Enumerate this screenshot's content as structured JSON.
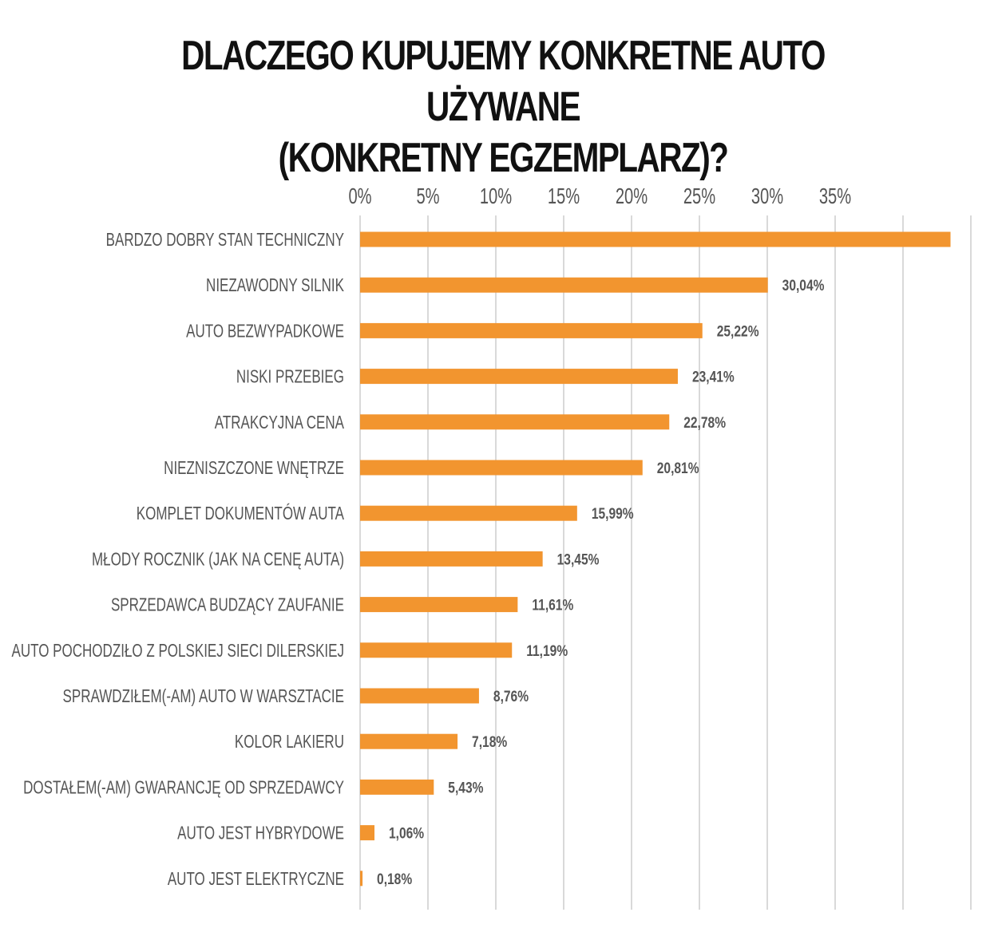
{
  "title": {
    "line1": "DLACZEGO KUPUJEMY KONKRETNE AUTO UŻYWANE",
    "line2": "(KONKRETNY EGZEMPLARZ)?"
  },
  "colors": {
    "bar": "#F2952F",
    "grid": "#D9D9D9",
    "text": "#555555",
    "title": "#111111"
  },
  "chart_data": {
    "type": "bar",
    "orientation": "horizontal",
    "categories": [
      "BARDZO DOBRY STAN TECHNICZNY",
      "NIEZAWODNY SILNIK",
      "AUTO BEZWYPADKOWE",
      "NISKI PRZEBIEG",
      "ATRAKCYJNA CENA",
      "NIEZNISZCZONE WNĘTRZE",
      "KOMPLET DOKUMENTÓW AUTA",
      "MŁODY ROCZNIK (JAK NA CENĘ AUTA)",
      "SPRZEDAWCA BUDZĄCY ZAUFANIE",
      "AUTO POCHODZIŁO Z POLSKIEJ SIECI DILERSKIEJ",
      "SPRAWDZIŁEM(-AM) AUTO W WARSZTACIE",
      "KOLOR LAKIERU",
      "DOSTAŁEM(-AM) GWARANCJĘ OD SPRZEDAWCY",
      "AUTO JEST HYBRYDOWE",
      "AUTO JEST ELEKTRYCZNE"
    ],
    "values": [
      43.5,
      30.04,
      25.22,
      23.41,
      22.78,
      20.81,
      15.99,
      13.45,
      11.61,
      11.19,
      8.76,
      7.18,
      5.43,
      1.06,
      0.18
    ],
    "value_labels": [
      "",
      "30,04%",
      "25,22%",
      "23,41%",
      "22,78%",
      "20,81%",
      "15,99%",
      "13,45%",
      "11,61%",
      "11,19%",
      "8,76%",
      "7,18%",
      "5,43%",
      "1,06%",
      "0,18%"
    ],
    "xticks": [
      0,
      5,
      10,
      15,
      20,
      25,
      30,
      35
    ],
    "xtick_labels": [
      "0%",
      "5%",
      "10%",
      "15%",
      "20%",
      "25%",
      "30%",
      "35%"
    ],
    "xlim": [
      0,
      45
    ],
    "grid": true,
    "xaxis_position": "top",
    "legend": false
  }
}
